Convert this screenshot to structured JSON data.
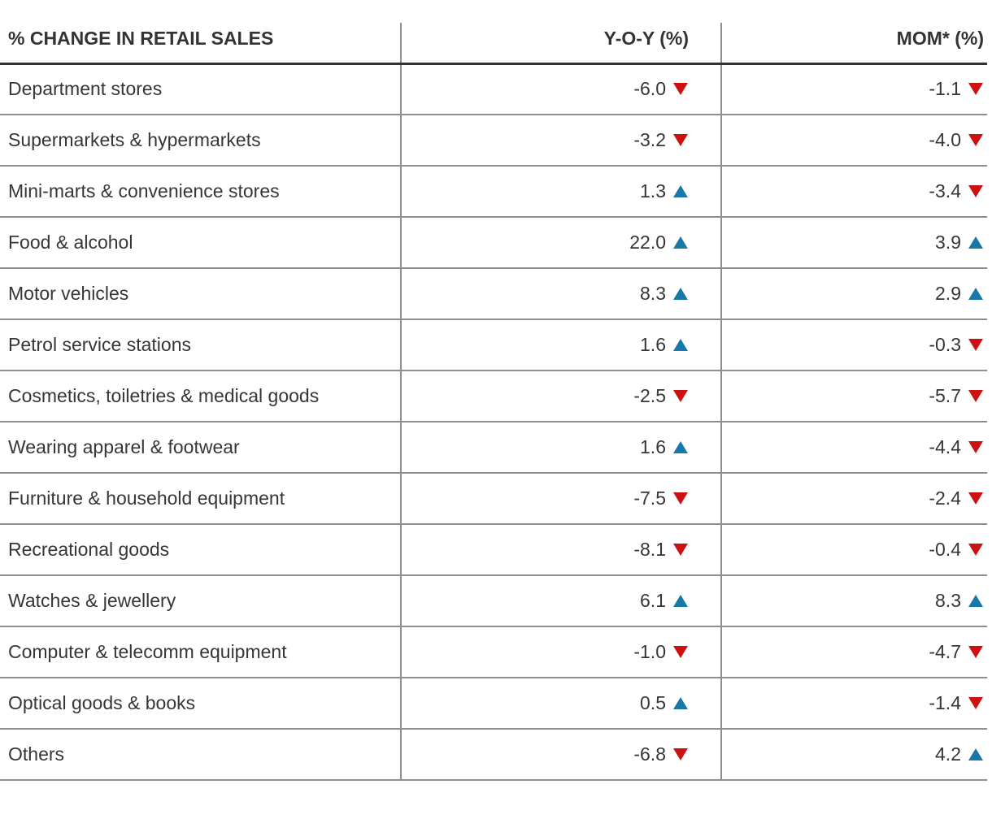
{
  "table": {
    "header": {
      "category": "% CHANGE IN RETAIL SALES",
      "yoy": "Y-O-Y (%)",
      "mom": "MOM* (%)"
    },
    "rows": [
      {
        "label": "Department stores",
        "yoy": {
          "value": "-6.0",
          "direction": "down"
        },
        "mom": {
          "value": "-1.1",
          "direction": "down"
        }
      },
      {
        "label": "Supermarkets & hypermarkets",
        "yoy": {
          "value": "-3.2",
          "direction": "down"
        },
        "mom": {
          "value": "-4.0",
          "direction": "down"
        }
      },
      {
        "label": "Mini-marts & convenience stores",
        "yoy": {
          "value": "1.3",
          "direction": "up"
        },
        "mom": {
          "value": "-3.4",
          "direction": "down"
        }
      },
      {
        "label": "Food & alcohol",
        "yoy": {
          "value": "22.0",
          "direction": "up"
        },
        "mom": {
          "value": "3.9",
          "direction": "up"
        }
      },
      {
        "label": "Motor vehicles",
        "yoy": {
          "value": "8.3",
          "direction": "up"
        },
        "mom": {
          "value": "2.9",
          "direction": "up"
        }
      },
      {
        "label": "Petrol service stations",
        "yoy": {
          "value": "1.6",
          "direction": "up"
        },
        "mom": {
          "value": "-0.3",
          "direction": "down"
        }
      },
      {
        "label": "Cosmetics, toiletries & medical goods",
        "yoy": {
          "value": "-2.5",
          "direction": "down"
        },
        "mom": {
          "value": "-5.7",
          "direction": "down"
        }
      },
      {
        "label": "Wearing apparel & footwear",
        "yoy": {
          "value": "1.6",
          "direction": "up"
        },
        "mom": {
          "value": "-4.4",
          "direction": "down"
        }
      },
      {
        "label": "Furniture & household equipment",
        "yoy": {
          "value": "-7.5",
          "direction": "down"
        },
        "mom": {
          "value": "-2.4",
          "direction": "down"
        }
      },
      {
        "label": "Recreational goods",
        "yoy": {
          "value": "-8.1",
          "direction": "down"
        },
        "mom": {
          "value": "-0.4",
          "direction": "down"
        }
      },
      {
        "label": "Watches & jewellery",
        "yoy": {
          "value": "6.1",
          "direction": "up"
        },
        "mom": {
          "value": "8.3",
          "direction": "up"
        }
      },
      {
        "label": "Computer & telecomm equipment",
        "yoy": {
          "value": "-1.0",
          "direction": "down"
        },
        "mom": {
          "value": "-4.7",
          "direction": "down"
        }
      },
      {
        "label": "Optical goods & books",
        "yoy": {
          "value": "0.5",
          "direction": "up"
        },
        "mom": {
          "value": "-1.4",
          "direction": "down"
        }
      },
      {
        "label": "Others",
        "yoy": {
          "value": "-6.8",
          "direction": "down"
        },
        "mom": {
          "value": "4.2",
          "direction": "up"
        }
      }
    ]
  },
  "colors": {
    "up": "#1878a8",
    "down": "#cc1111",
    "text": "#363636",
    "grid": "#8f8f8f",
    "headline": "#333333"
  },
  "chart_data": {
    "type": "table",
    "title": "% CHANGE IN RETAIL SALES",
    "categories": [
      "Department stores",
      "Supermarkets & hypermarkets",
      "Mini-marts & convenience stores",
      "Food & alcohol",
      "Motor vehicles",
      "Petrol service stations",
      "Cosmetics, toiletries & medical goods",
      "Wearing apparel & footwear",
      "Furniture & household equipment",
      "Recreational goods",
      "Watches & jewellery",
      "Computer & telecomm equipment",
      "Optical goods & books",
      "Others"
    ],
    "series": [
      {
        "name": "Y-O-Y (%)",
        "values": [
          -6.0,
          -3.2,
          1.3,
          22.0,
          8.3,
          1.6,
          -2.5,
          1.6,
          -7.5,
          -8.1,
          6.1,
          -1.0,
          0.5,
          -6.8
        ]
      },
      {
        "name": "MOM* (%)",
        "values": [
          -1.1,
          -4.0,
          -3.4,
          3.9,
          2.9,
          -0.3,
          -5.7,
          -4.4,
          -2.4,
          -0.4,
          8.3,
          -4.7,
          -1.4,
          4.2
        ]
      }
    ],
    "layout_hints": {
      "indicator_up_color": "#1878a8",
      "indicator_down_color": "#cc1111",
      "up_marker": "triangle-up",
      "down_marker": "triangle-down",
      "value_alignment": "right"
    }
  }
}
